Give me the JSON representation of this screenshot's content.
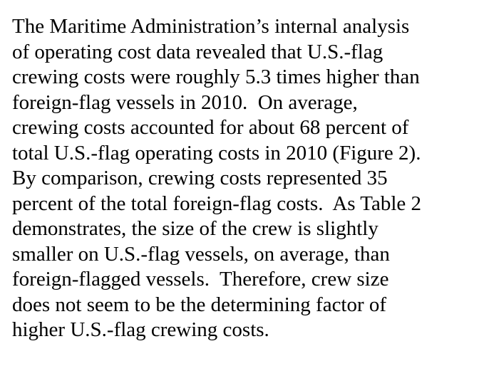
{
  "paragraph": {
    "lines": [
      "The Maritime Administration’s internal analysis",
      "of operating cost data revealed that U.S.-flag",
      "crewing costs were roughly 5.3 times higher than",
      "foreign-flag vessels in 2010.  On average,",
      "crewing costs accounted for about 68 percent of",
      "total U.S.-flag operating costs in 2010 (Figure 2).",
      "By comparison, crewing costs represented 35",
      "percent of the total foreign-flag costs.  As Table 2",
      "demonstrates, the size of the crew is slightly",
      "smaller on U.S.-flag vessels, on average, than",
      "foreign-flagged vessels.  Therefore, crew size",
      "does not seem to be the determining factor of",
      "higher U.S.-flag crewing costs."
    ]
  }
}
